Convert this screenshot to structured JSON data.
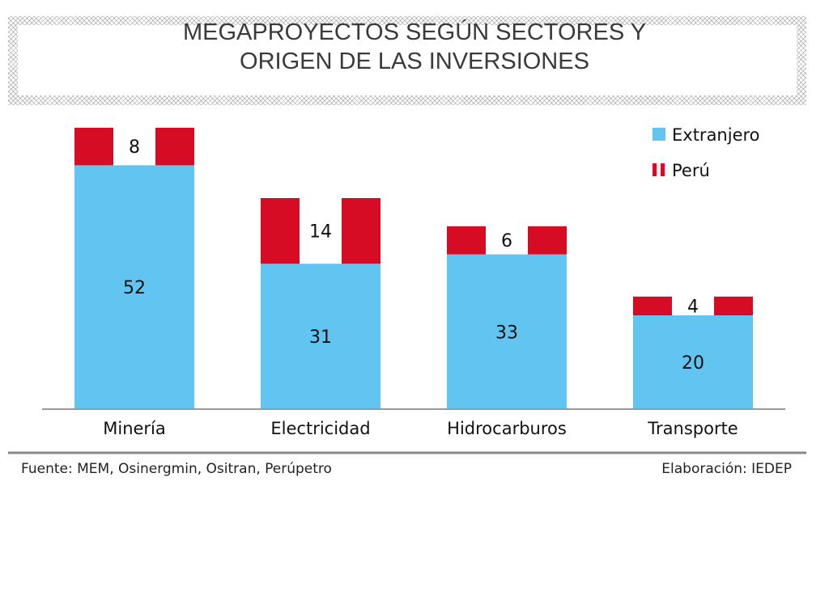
{
  "chart_data": {
    "type": "bar",
    "stacked": true,
    "title": "MEGAPROYECTOS SEGÚN SECTORES Y ORIGEN DE LAS INVERSIONES",
    "title_lines": [
      "MEGAPROYECTOS SEGÚN SECTORES Y",
      "ORIGEN DE LAS INVERSIONES"
    ],
    "categories": [
      "Minería",
      "Electricidad",
      "Hidrocarburos",
      "Transporte"
    ],
    "series": [
      {
        "name": "Extranjero",
        "color": "#62c4f0",
        "values": [
          52,
          31,
          33,
          20
        ]
      },
      {
        "name": "Perú",
        "color": "#d60b24",
        "values": [
          8,
          14,
          6,
          4
        ]
      }
    ],
    "legend": "top-right",
    "xlabel": "",
    "ylabel": "",
    "ylim": [
      0,
      60
    ],
    "grid": false
  },
  "footer": {
    "source": "Fuente: MEM, Osinergmin, Ositran, Perúpetro",
    "credit": "Elaboración: IEDEP"
  }
}
